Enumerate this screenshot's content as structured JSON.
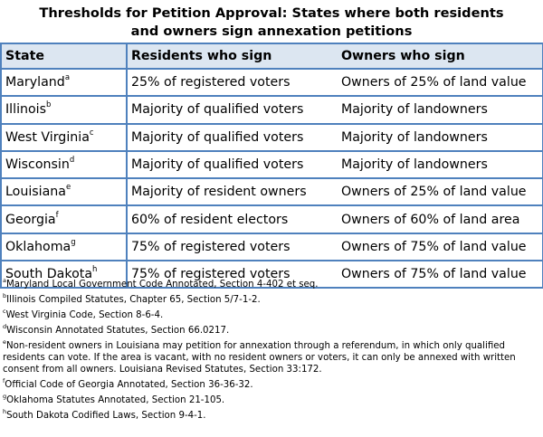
{
  "title": {
    "line1": "Thresholds for Petition Approval:  States where both residents",
    "line2": "and owners sign annexation petitions"
  },
  "table": {
    "headers": [
      "State",
      "Residents who sign",
      "Owners who sign"
    ],
    "rows": [
      {
        "state": "Maryland",
        "note": "a",
        "residents": "25% of registered voters",
        "owners": "Owners of 25% of land value"
      },
      {
        "state": "Illinois",
        "note": "b",
        "residents": "Majority of qualified voters",
        "owners": "Majority of landowners"
      },
      {
        "state": "West Virginia",
        "note": "c",
        "residents": "Majority of qualified voters",
        "owners": "Majority of landowners"
      },
      {
        "state": "Wisconsin",
        "note": "d",
        "residents": "Majority of qualified voters",
        "owners": "Majority of landowners"
      },
      {
        "state": "Louisiana",
        "note": "e",
        "residents": "Majority of resident owners",
        "owners": "Owners of 25% of land value"
      },
      {
        "state": "Georgia",
        "note": "f",
        "residents": "60% of resident electors",
        "owners": "Owners of 60% of land area"
      },
      {
        "state": "Oklahoma",
        "note": "g",
        "residents": "75% of registered voters",
        "owners": "Owners of 75% of land value"
      },
      {
        "state": "South Dakota",
        "note": "h",
        "residents": "75% of registered voters",
        "owners": "Owners of 75% of land value"
      }
    ]
  },
  "footnotes": [
    {
      "mark": "a",
      "text": "Maryland Local Government Code Annotated, Section 4-402 et seq."
    },
    {
      "mark": "b",
      "text": "Illinois Compiled Statutes, Chapter 65, Section 5/7-1-2."
    },
    {
      "mark": "c",
      "text": "West Virginia Code, Section 8-6-4."
    },
    {
      "mark": "d",
      "text": "Wisconsin Annotated Statutes, Section 66.0217."
    },
    {
      "mark": "e",
      "text": "Non-resident owners in Louisiana may petition for annexation through a referendum, in which only qualified residents can vote.  If the area is vacant, with no resident owners or voters, it can only be annexed with written consent from all owners.  Louisiana Revised Statutes, Section 33:172."
    },
    {
      "mark": "f",
      "text": "Official Code of Georgia Annotated, Section 36-36-32."
    },
    {
      "mark": "g",
      "text": "Oklahoma Statutes Annotated, Section 21-105."
    },
    {
      "mark": "h",
      "text": "South Dakota Codified Laws, Section 9-4-1."
    }
  ]
}
